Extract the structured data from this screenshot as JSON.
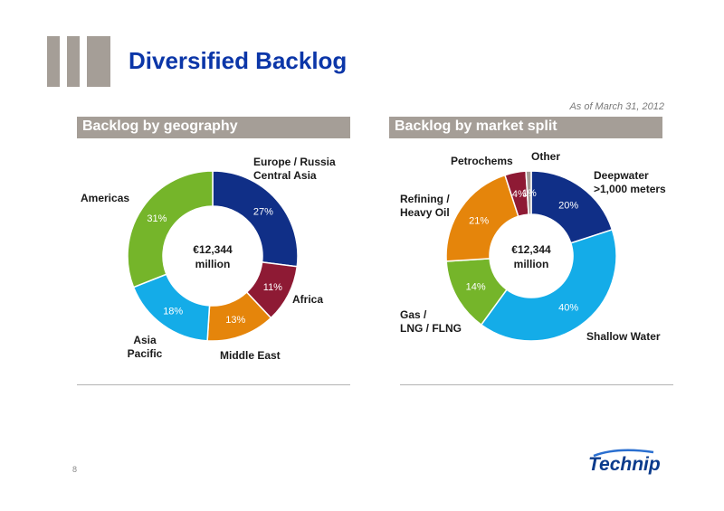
{
  "page": {
    "title": "Diversified Backlog",
    "as_of": "As of March 31, 2012",
    "page_number": "8",
    "brand": "Technip"
  },
  "colors": {
    "title_blue": "#0b36a8",
    "header_bg": "#a59e97",
    "navy": "#102f87",
    "crimson": "#8e1a34",
    "orange": "#e5850b",
    "sky": "#14ace8",
    "green": "#75b52a",
    "grey": "#a59e97"
  },
  "chart_data": [
    {
      "type": "pie",
      "variant": "donut",
      "title": "Backlog by geography",
      "center_label": [
        "€12,344",
        "million"
      ],
      "slices": [
        {
          "label": [
            "Europe / Russia",
            "Central Asia"
          ],
          "value": 27,
          "display": "27%",
          "color": "#102f87"
        },
        {
          "label": [
            "Africa"
          ],
          "value": 11,
          "display": "11%",
          "color": "#8e1a34"
        },
        {
          "label": [
            "Middle East"
          ],
          "value": 13,
          "display": "13%",
          "color": "#e5850b"
        },
        {
          "label": [
            "Asia",
            "Pacific"
          ],
          "value": 18,
          "display": "18%",
          "color": "#14ace8"
        },
        {
          "label": [
            "Americas"
          ],
          "value": 31,
          "display": "31%",
          "color": "#75b52a"
        }
      ]
    },
    {
      "type": "pie",
      "variant": "donut",
      "title": "Backlog by market split",
      "center_label": [
        "€12,344",
        "million"
      ],
      "slices": [
        {
          "label": [
            "Deepwater",
            ">1,000 meters"
          ],
          "value": 20,
          "display": "20%",
          "color": "#102f87"
        },
        {
          "label": [
            "Shallow Water"
          ],
          "value": 40,
          "display": "40%",
          "color": "#14ace8"
        },
        {
          "label": [
            "Gas /",
            "LNG / FLNG"
          ],
          "value": 14,
          "display": "14%",
          "color": "#75b52a"
        },
        {
          "label": [
            "Refining /",
            "Heavy Oil"
          ],
          "value": 21,
          "display": "21%",
          "color": "#e5850b"
        },
        {
          "label": [
            "Petrochems"
          ],
          "value": 4,
          "display": "4%",
          "color": "#8e1a34"
        },
        {
          "label": [
            "Other"
          ],
          "value": 1,
          "display": "1%",
          "color": "#a59e97"
        }
      ]
    }
  ]
}
